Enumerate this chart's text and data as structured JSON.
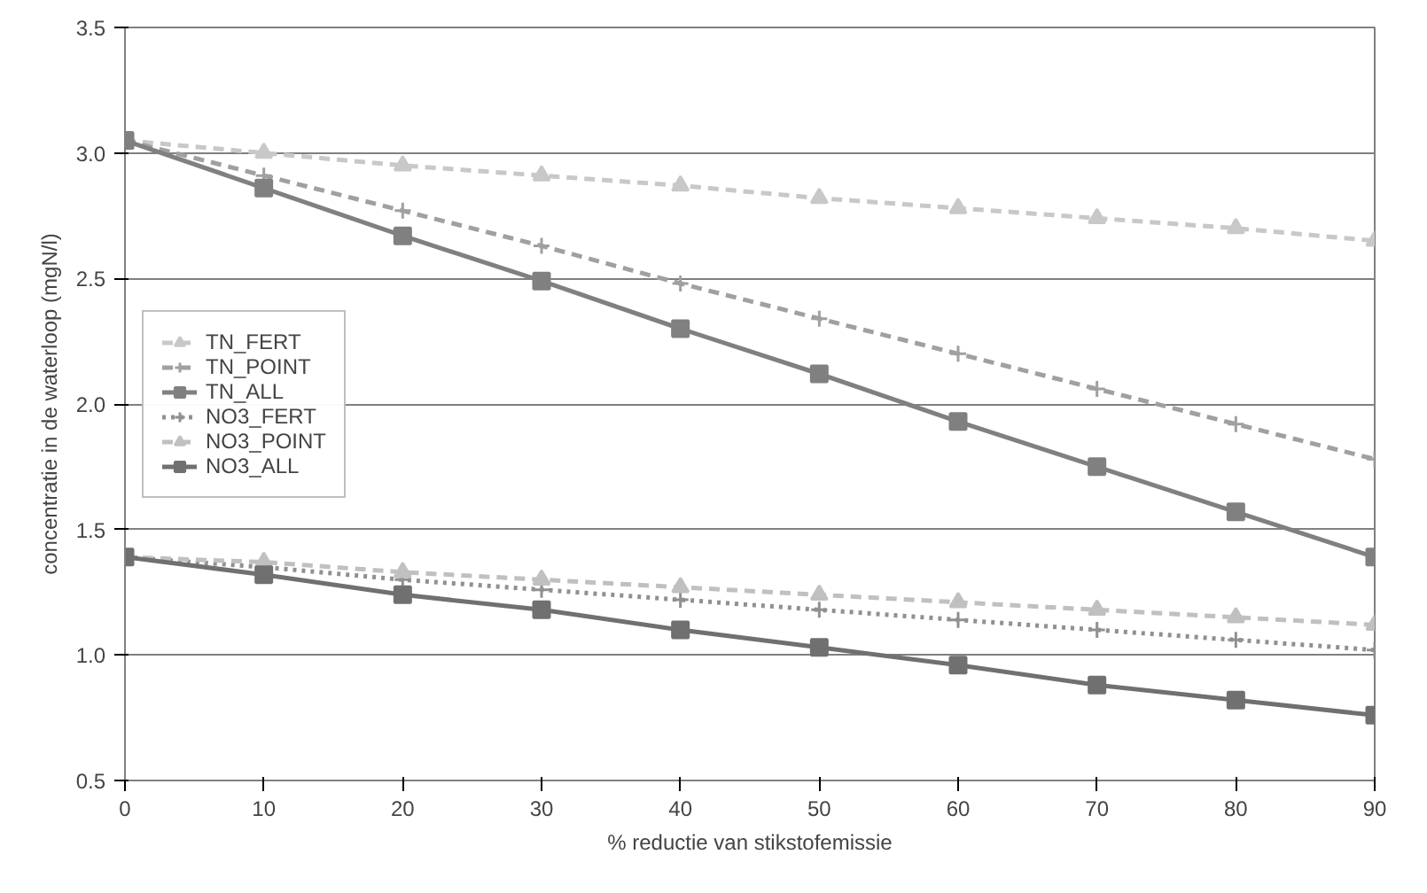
{
  "chart_data": {
    "type": "line",
    "xlabel": "% reductie van stikstofemissie",
    "ylabel": "concentratie in de waterloop (mgN/l)",
    "x": [
      0,
      10,
      20,
      30,
      40,
      50,
      60,
      70,
      80,
      90
    ],
    "xlim": [
      0,
      90
    ],
    "xticks": [
      0,
      10,
      20,
      30,
      40,
      50,
      60,
      70,
      80,
      90
    ],
    "ylim": [
      0.5,
      3.5
    ],
    "yticks": [
      {
        "value": 0.5,
        "label": "0.5"
      },
      {
        "value": 1.0,
        "label": "1.0"
      },
      {
        "value": 1.5,
        "label": "1.5"
      },
      {
        "value": 2.0,
        "label": "2.0"
      },
      {
        "value": 2.5,
        "label": "2.5"
      },
      {
        "value": 3.0,
        "label": "3.0"
      },
      {
        "value": 3.5,
        "label": "3.5"
      }
    ],
    "grid": "y",
    "legend": "left",
    "series": [
      {
        "name": "TN_FERT",
        "color": "#c8c8c8",
        "marker": "triangle",
        "line_style": "dashed",
        "values": [
          3.05,
          3.0,
          2.95,
          2.91,
          2.87,
          2.82,
          2.78,
          2.74,
          2.7,
          2.65
        ]
      },
      {
        "name": "TN_POINT",
        "color": "#a0a0a0",
        "marker": "cross",
        "line_style": "dashed",
        "values": [
          3.05,
          2.91,
          2.77,
          2.63,
          2.48,
          2.34,
          2.2,
          2.06,
          1.92,
          1.78
        ]
      },
      {
        "name": "TN_ALL",
        "color": "#808080",
        "marker": "square",
        "line_style": "solid",
        "values": [
          3.05,
          2.86,
          2.67,
          2.49,
          2.3,
          2.12,
          1.93,
          1.75,
          1.57,
          1.39
        ]
      },
      {
        "name": "NO3_FERT",
        "color": "#909090",
        "marker": "cross",
        "line_style": "dotted",
        "values": [
          1.39,
          1.35,
          1.3,
          1.26,
          1.22,
          1.18,
          1.14,
          1.1,
          1.06,
          1.02
        ]
      },
      {
        "name": "NO3_POINT",
        "color": "#c0c0c0",
        "marker": "triangle",
        "line_style": "dashed",
        "values": [
          1.39,
          1.37,
          1.33,
          1.3,
          1.27,
          1.24,
          1.21,
          1.18,
          1.15,
          1.12
        ]
      },
      {
        "name": "NO3_ALL",
        "color": "#707070",
        "marker": "square",
        "line_style": "solid",
        "values": [
          1.39,
          1.32,
          1.24,
          1.18,
          1.1,
          1.03,
          0.96,
          0.88,
          0.82,
          0.76
        ]
      }
    ]
  }
}
